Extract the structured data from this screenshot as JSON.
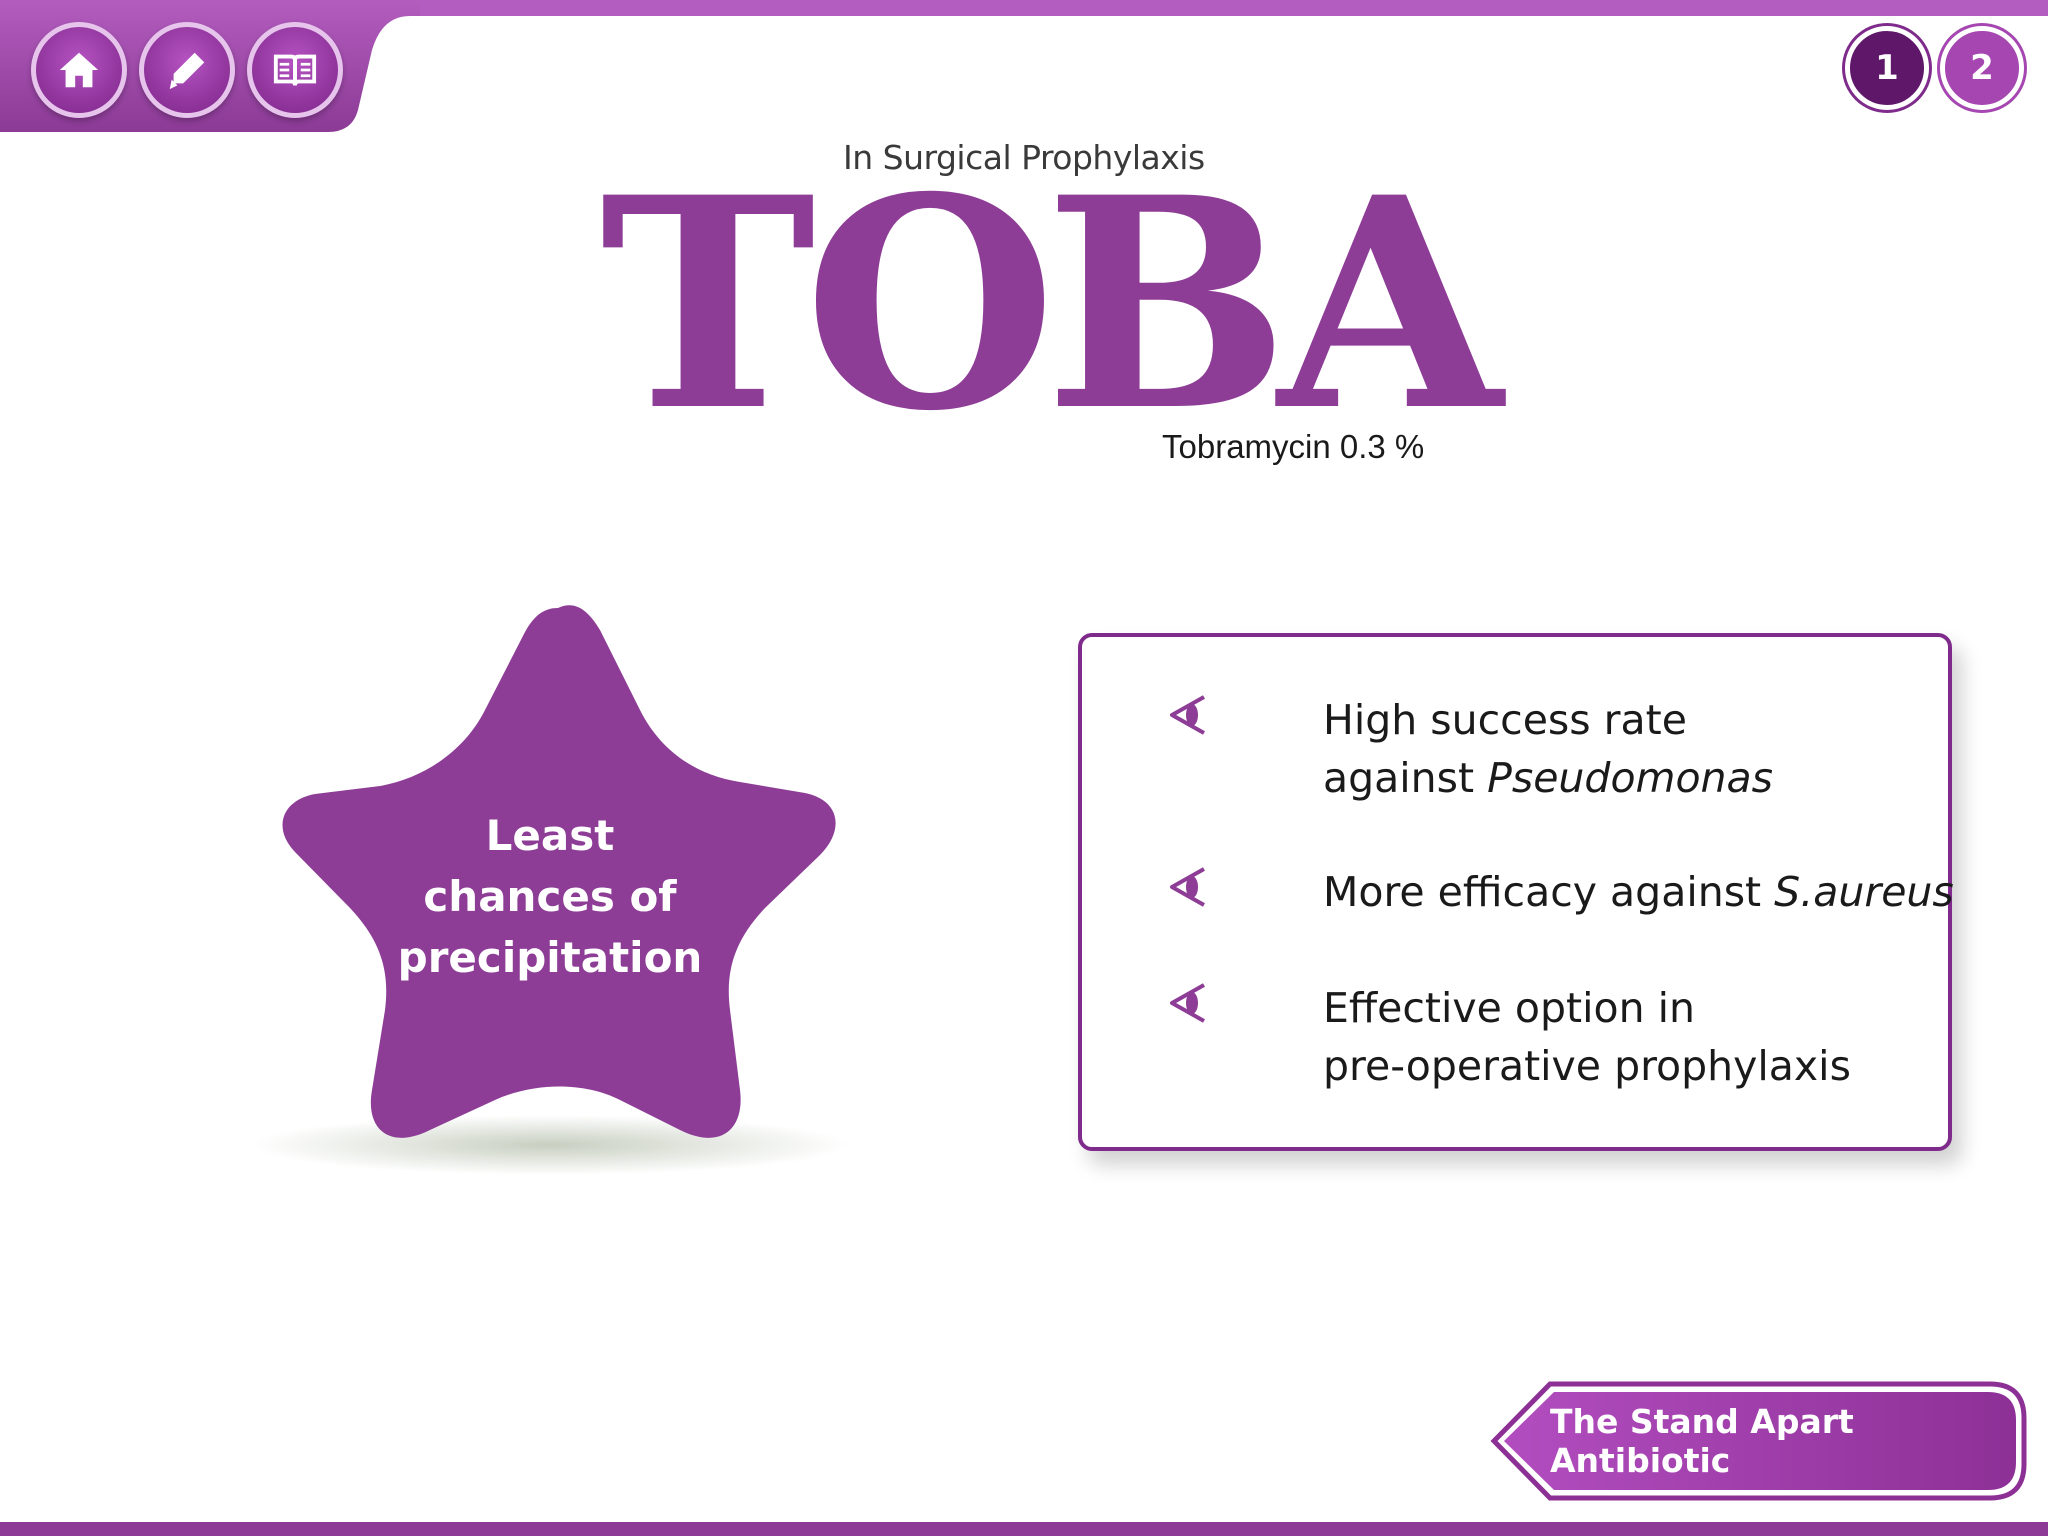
{
  "colors": {
    "brand": "#8d3d96",
    "accent": "#b45dc0",
    "dark": "#5e1769"
  },
  "nav": {
    "buttons": [
      {
        "icon": "home-icon"
      },
      {
        "icon": "pencil-icon"
      },
      {
        "icon": "book-icon"
      }
    ]
  },
  "pages": {
    "current": "1",
    "next": "2"
  },
  "header": {
    "subtitle": "In Surgical Prophylaxis",
    "brand": "TOBA",
    "generic": "Tobramycin 0.3 %"
  },
  "star": {
    "lines": [
      "Least",
      "chances of",
      "precipitation"
    ]
  },
  "benefits": {
    "items": [
      {
        "line1": "High success rate",
        "line2_prefix": "against ",
        "line2_italic": "Pseudomonas"
      },
      {
        "line1_prefix": "More efficacy against ",
        "line1_italic": "S.aureus"
      },
      {
        "line1": "Effective option in",
        "line2": "pre-operative prophylaxis"
      }
    ]
  },
  "footer": {
    "cta_label": "The Stand Apart Antibiotic"
  }
}
